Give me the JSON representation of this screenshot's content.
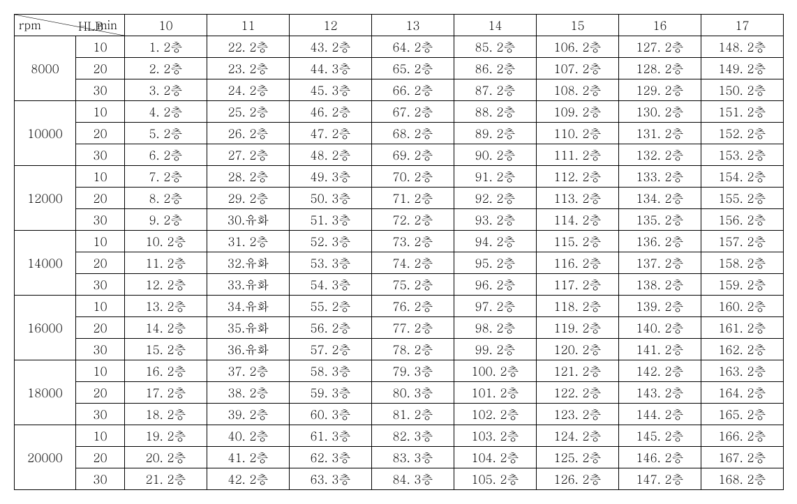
{
  "header": {
    "diag_top": "HLB",
    "diag_left": "rpm",
    "diag_right": "min",
    "hlb_values": [
      "10",
      "11",
      "12",
      "13",
      "14",
      "15",
      "16",
      "17"
    ]
  },
  "row_groups": [
    {
      "rpm": "8000",
      "rows": [
        {
          "min": "10",
          "cells": [
            "1. 2층",
            "22. 2층",
            "43. 2층",
            "64. 2층",
            "85. 2층",
            "106. 2층",
            "127. 2층",
            "148. 2층"
          ]
        },
        {
          "min": "20",
          "cells": [
            "2. 2층",
            "23. 2층",
            "44. 3층",
            "65. 2층",
            "86. 2층",
            "107. 2층",
            "128. 2층",
            "149. 2층"
          ]
        },
        {
          "min": "30",
          "cells": [
            "3. 2층",
            "24. 2층",
            "45. 3층",
            "66. 2층",
            "87. 2층",
            "108. 2층",
            "129. 2층",
            "150. 2층"
          ]
        }
      ]
    },
    {
      "rpm": "10000",
      "rows": [
        {
          "min": "10",
          "cells": [
            "4. 2층",
            "25. 2층",
            "46. 2층",
            "67. 2층",
            "88. 2층",
            "109. 2층",
            "130. 2층",
            "151. 2층"
          ]
        },
        {
          "min": "20",
          "cells": [
            "5. 2층",
            "26. 2층",
            "47. 2층",
            "68. 2층",
            "89. 2층",
            "110. 2층",
            "131. 2층",
            "152. 2층"
          ]
        },
        {
          "min": "30",
          "cells": [
            "6. 2층",
            "27. 2층",
            "48. 2층",
            "69. 2층",
            "90. 2층",
            "111. 2층",
            "132. 2층",
            "153. 2층"
          ]
        }
      ]
    },
    {
      "rpm": "12000",
      "rows": [
        {
          "min": "10",
          "cells": [
            "7. 2층",
            "28. 2층",
            "49. 3층",
            "70. 2층",
            "91. 2층",
            "112. 2층",
            "133. 2층",
            "154. 2층"
          ]
        },
        {
          "min": "20",
          "cells": [
            "8. 2층",
            "29. 2층",
            "50. 3층",
            "71. 2층",
            "92. 2층",
            "113. 2층",
            "134. 2층",
            "155. 2층"
          ]
        },
        {
          "min": "30",
          "cells": [
            "9. 2층",
            "30.유화",
            "51. 3층",
            "72. 2층",
            "93. 2층",
            "114. 2층",
            "135. 2층",
            "156. 2층"
          ]
        }
      ]
    },
    {
      "rpm": "14000",
      "rows": [
        {
          "min": "10",
          "cells": [
            "10. 2층",
            "31. 2층",
            "52. 3층",
            "73. 2층",
            "94. 2층",
            "115. 2층",
            "136. 2층",
            "157. 2층"
          ]
        },
        {
          "min": "20",
          "cells": [
            "11. 2층",
            "32.유화",
            "53. 3층",
            "74. 2층",
            "95. 2층",
            "116. 2층",
            "137. 2층",
            "158. 2층"
          ]
        },
        {
          "min": "30",
          "cells": [
            "12. 2층",
            "33.유화",
            "54. 3층",
            "75. 2층",
            "96. 2층",
            "117. 2층",
            "138. 2층",
            "159. 2층"
          ]
        }
      ]
    },
    {
      "rpm": "16000",
      "rows": [
        {
          "min": "10",
          "cells": [
            "13. 2층",
            "34.유화",
            "55. 2층",
            "76. 2층",
            "97. 2층",
            "118. 2층",
            "139. 2층",
            "160. 2층"
          ]
        },
        {
          "min": "20",
          "cells": [
            "14. 2층",
            "35.유화",
            "56. 2층",
            "77. 2층",
            "98. 2층",
            "119. 2층",
            "140. 2층",
            "161. 2층"
          ]
        },
        {
          "min": "30",
          "cells": [
            "15. 2층",
            "36.유화",
            "57. 2층",
            "78. 2층",
            "99. 2층",
            "120. 2층",
            "141. 2층",
            "162. 2층"
          ]
        }
      ]
    },
    {
      "rpm": "18000",
      "rows": [
        {
          "min": "10",
          "cells": [
            "16. 2층",
            "37. 2층",
            "58. 3층",
            "79. 3층",
            "100. 2층",
            "121. 2층",
            "142. 2층",
            "163. 2층"
          ]
        },
        {
          "min": "20",
          "cells": [
            "17. 2층",
            "38. 2층",
            "59. 3층",
            "80. 3층",
            "101. 2층",
            "122. 2층",
            "143. 2층",
            "164. 2층"
          ]
        },
        {
          "min": "30",
          "cells": [
            "18. 2층",
            "39. 2층",
            "60. 3층",
            "81. 2층",
            "102. 2층",
            "123. 2층",
            "144. 2층",
            "165. 2층"
          ]
        }
      ]
    },
    {
      "rpm": "20000",
      "rows": [
        {
          "min": "10",
          "cells": [
            "19. 2층",
            "40. 2층",
            "61. 3층",
            "82. 3층",
            "103. 2층",
            "124. 2층",
            "145. 2층",
            "166. 2층"
          ]
        },
        {
          "min": "20",
          "cells": [
            "20. 2층",
            "41. 2층",
            "62. 3층",
            "83. 3층",
            "104. 2층",
            "125. 2층",
            "146. 2층",
            "167. 2층"
          ]
        },
        {
          "min": "30",
          "cells": [
            "21. 2층",
            "42. 2층",
            "63. 3층",
            "84. 3층",
            "105. 2층",
            "126. 2층",
            "147. 2층",
            "168. 2층"
          ]
        }
      ]
    }
  ]
}
